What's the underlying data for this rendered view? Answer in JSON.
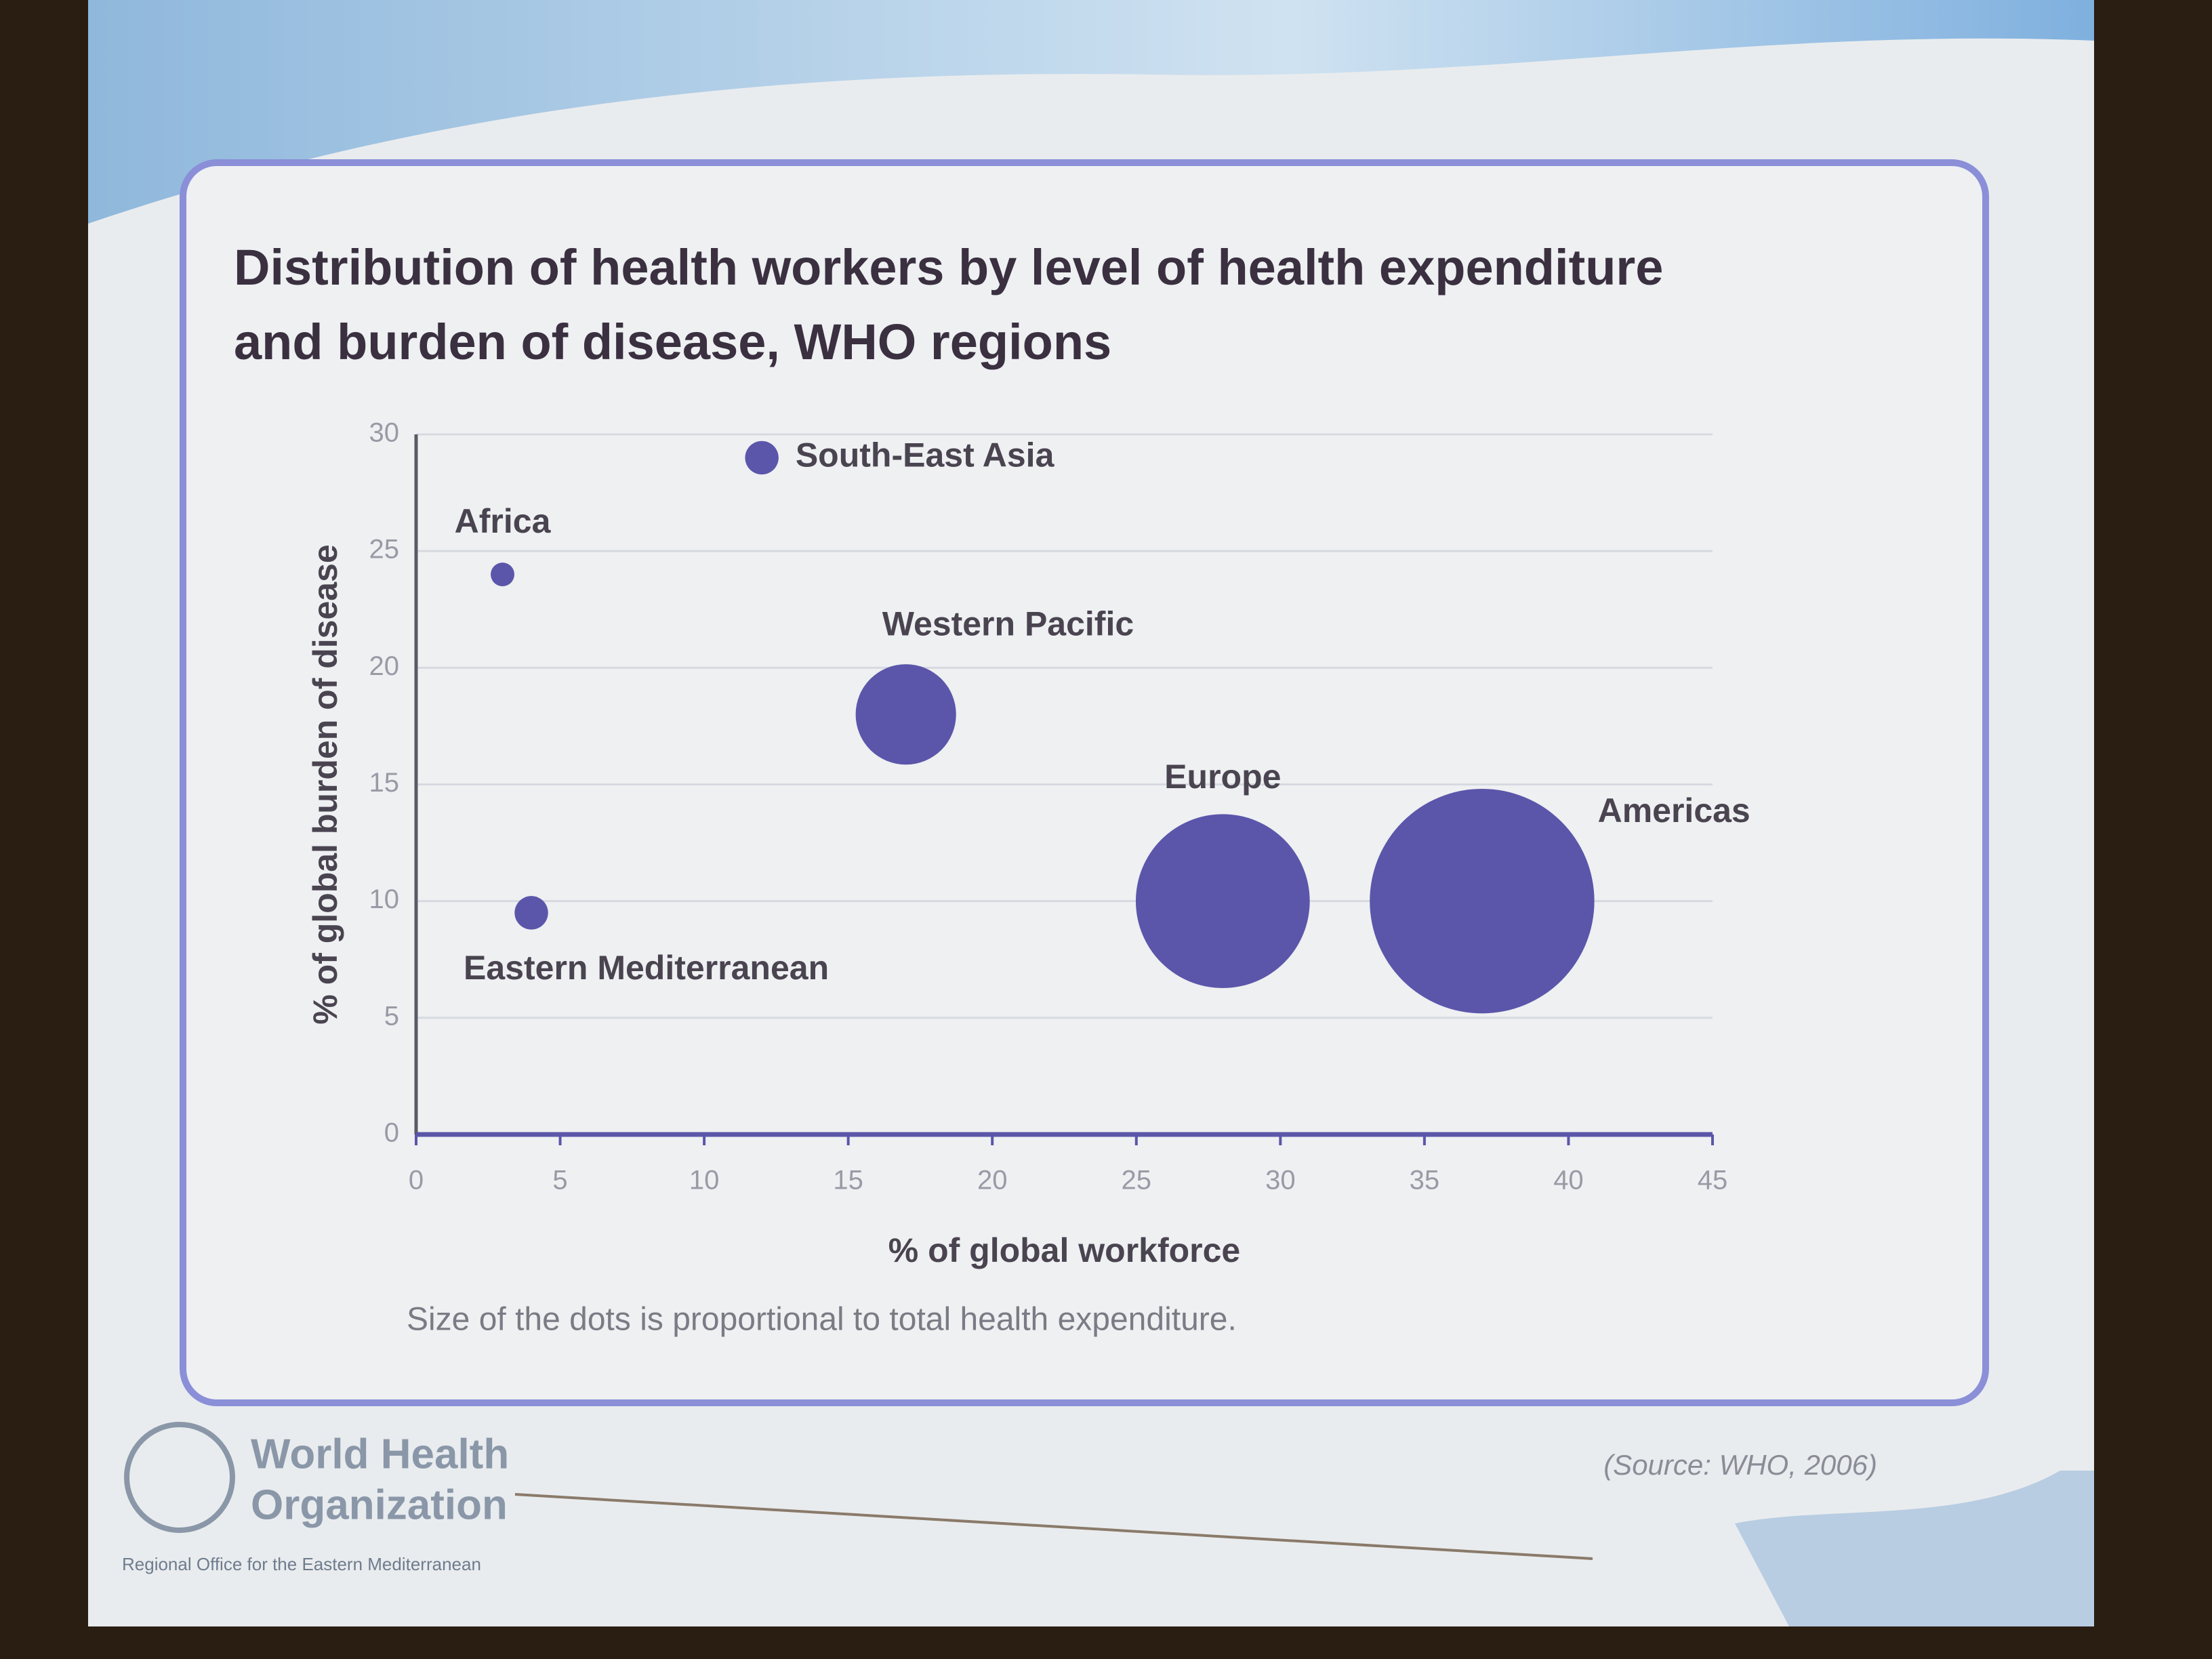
{
  "chart_data": {
    "type": "scatter",
    "title": "Distribution of health workers by level of health expenditure and burden of disease, WHO regions",
    "x_label": "% of global workforce",
    "y_label": "% of global burden of disease",
    "note": "Size of the dots is proportional to total health expenditure.",
    "series": [
      {
        "color": "#5b56aa",
        "labels": [
          "Africa",
          "South-East Asia",
          "Western Pacific",
          "Europe",
          "Americas",
          "Eastern Mediterranean"
        ],
        "x": [
          3,
          12,
          17,
          28,
          37,
          4
        ],
        "y": [
          24,
          29,
          18,
          10,
          10,
          9.5
        ],
        "sizes": [
          0.5,
          1,
          9,
          27,
          45,
          1
        ]
      }
    ],
    "xlim": [
      0,
      45
    ],
    "xticks": [
      0,
      5,
      10,
      15,
      20,
      25,
      30,
      35,
      40,
      45
    ],
    "ylim": [
      0,
      30
    ],
    "yticks": [
      0,
      5,
      10,
      15,
      20,
      25,
      30
    ],
    "grid": true
  },
  "slide": {
    "source": "(Source: WHO, 2006)",
    "logo_line1": "World Health",
    "logo_line2": "Organization",
    "logo_sub": "Regional Office for the Eastern Mediterranean"
  }
}
